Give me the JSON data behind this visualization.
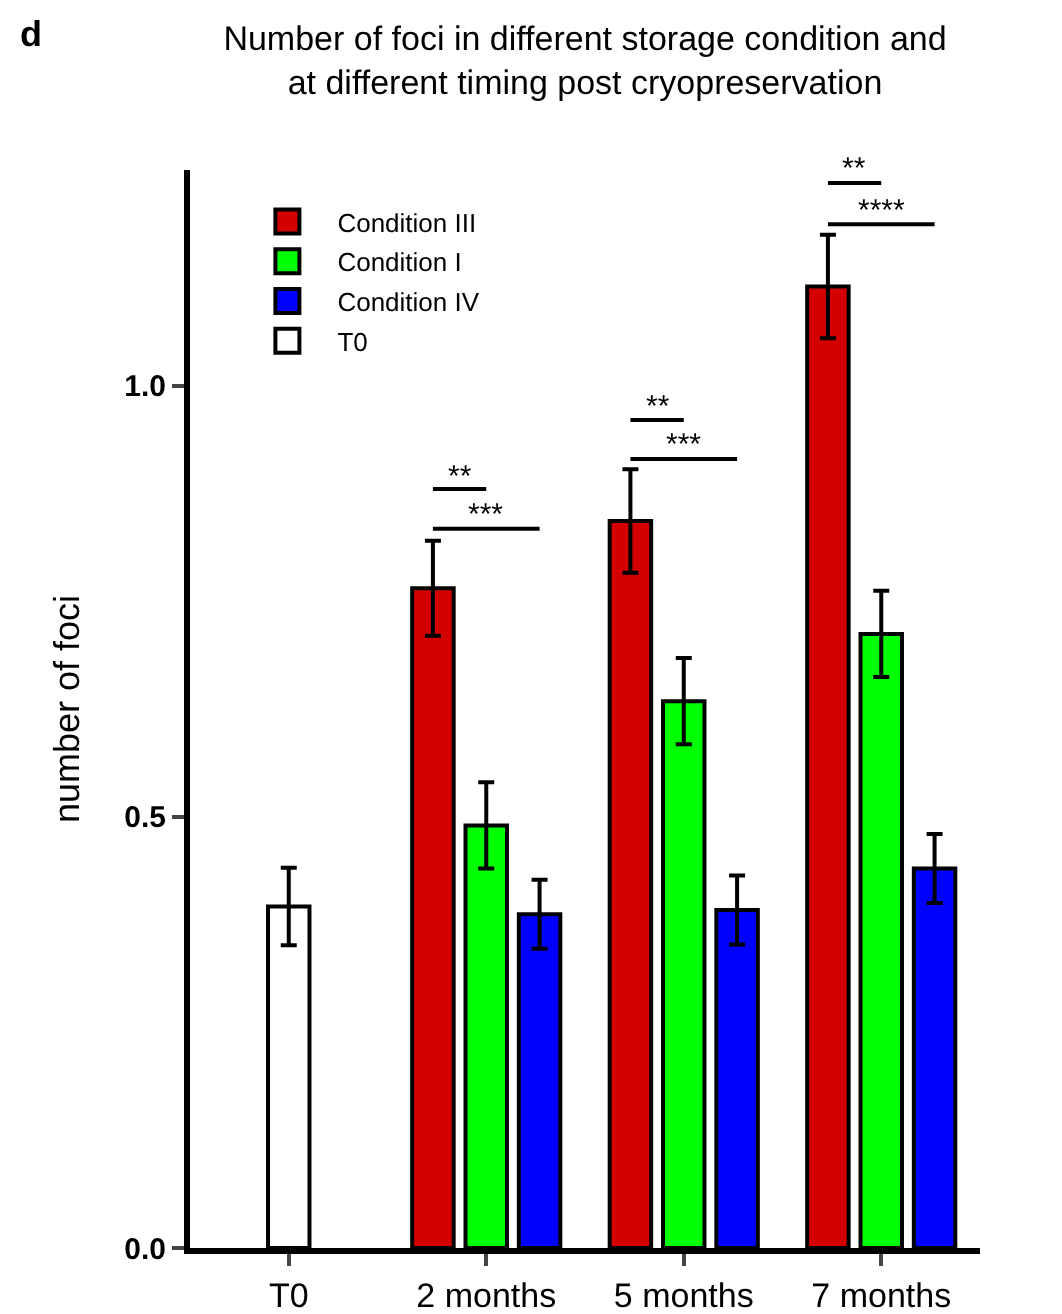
{
  "chart_data": {
    "type": "bar",
    "title": "Number of foci in different storage condition and at different timing post cryopreservation",
    "ylabel": "number of foci",
    "categories": [
      "T0",
      "2 months",
      "5 months",
      "7 months"
    ],
    "series": [
      {
        "name": "Condition III",
        "color": "#d40000",
        "values": [
          null,
          0.765,
          0.843,
          1.115
        ],
        "errors": [
          null,
          0.055,
          0.06,
          0.06
        ]
      },
      {
        "name": "Condition I",
        "color": "#00ff00",
        "values": [
          null,
          0.49,
          0.634,
          0.712
        ],
        "errors": [
          null,
          0.05,
          0.05,
          0.05
        ]
      },
      {
        "name": "Condition IV",
        "color": "#0000ff",
        "values": [
          null,
          0.387,
          0.392,
          0.44
        ],
        "errors": [
          null,
          0.04,
          0.04,
          0.04
        ]
      },
      {
        "name": "T0",
        "color": "#ffffff",
        "values": [
          0.396,
          null,
          null,
          null
        ],
        "errors": [
          0.045,
          null,
          null,
          null
        ]
      }
    ],
    "ylim": [
      0,
      1.25
    ],
    "yticks": [
      {
        "value": 0,
        "label": "0.0"
      },
      {
        "value": 0.5,
        "label": "0.5"
      },
      {
        "value": 1,
        "label": "1.0"
      }
    ],
    "grid": false,
    "legend": "top left",
    "annotations": [
      "d",
      "**",
      "***",
      "**",
      "***",
      "**",
      "****"
    ]
  }
}
